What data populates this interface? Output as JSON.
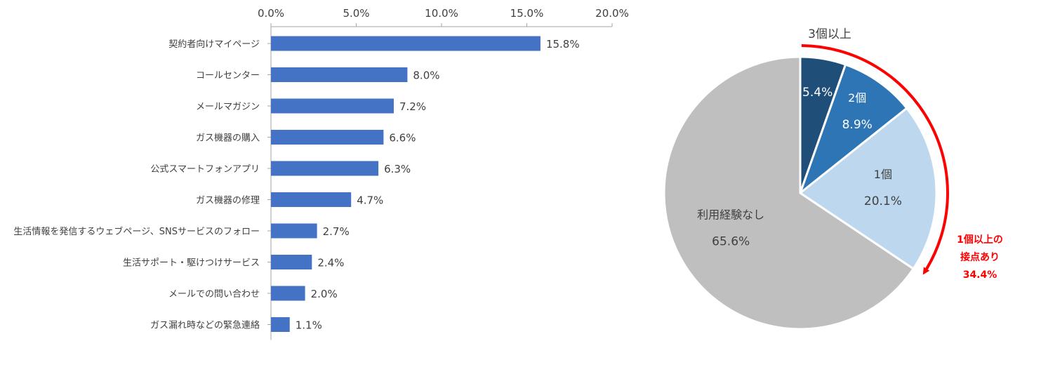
{
  "chart_data": [
    {
      "type": "bar",
      "orientation": "horizontal",
      "categories": [
        "契約者向けマイページ",
        "コールセンター",
        "メールマガジン",
        "ガス機器の購入",
        "公式スマートフォンアプリ",
        "ガス機器の修理",
        "生活情報を発信するウェブページ、SNSサービスのフォロー",
        "生活サポート・駆けつけサービス",
        "メールでの問い合わせ",
        "ガス漏れ時などの緊急連絡"
      ],
      "values": [
        15.8,
        8.0,
        7.2,
        6.6,
        6.3,
        4.7,
        2.7,
        2.4,
        2.0,
        1.1
      ],
      "value_labels": [
        "15.8%",
        "8.0%",
        "7.2%",
        "6.6%",
        "6.3%",
        "4.7%",
        "2.7%",
        "2.4%",
        "2.0%",
        "1.1%"
      ],
      "xlim": [
        0,
        20
      ],
      "ticks": [
        0,
        5,
        10,
        15,
        20
      ],
      "tick_labels": [
        "0.0%",
        "5.0%",
        "10.0%",
        "15.0%",
        "20.0%"
      ],
      "axis_position": "top",
      "grid": false,
      "color": "#4472C4"
    },
    {
      "type": "pie",
      "slices": [
        {
          "label": "",
          "value": 5.4,
          "value_label": "5.4%",
          "color": "#1F4E79"
        },
        {
          "label": "2個",
          "value": 8.9,
          "value_label": "8.9%",
          "color": "#2E75B6"
        },
        {
          "label": "1個",
          "value": 20.1,
          "value_label": "20.1%",
          "color": "#BDD7EE"
        },
        {
          "label": "利用経験なし",
          "value": 65.6,
          "value_label": "65.6%",
          "color": "#BFBFBF"
        }
      ],
      "start_angle_deg": 0,
      "direction": "clockwise",
      "annotations": {
        "top_label": "3個以上",
        "bracket_lines": [
          "1個以上の",
          "接点あり",
          "34.4%"
        ],
        "bracket_color": "#FF0000"
      }
    }
  ]
}
